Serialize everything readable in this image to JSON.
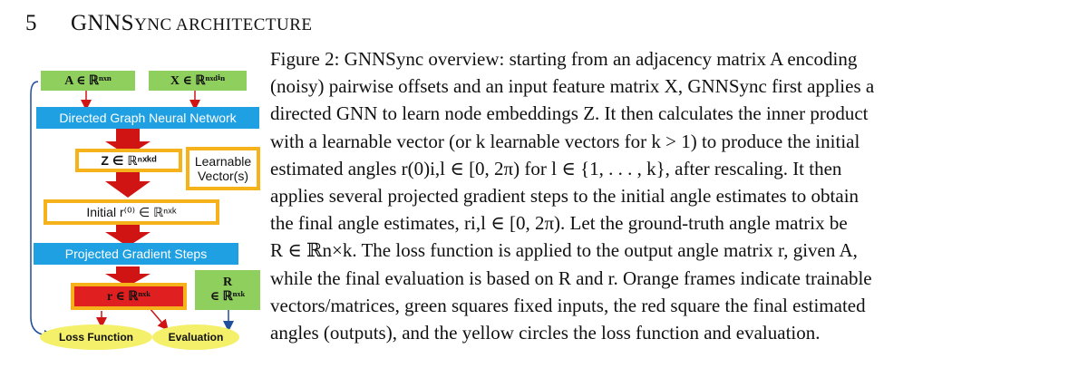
{
  "section": {
    "number": "5",
    "title_first": "GNNS",
    "title_small": "YNC ARCHITECTURE"
  },
  "diagram": {
    "input_adjacency": "A ∈ ℝⁿˣⁿ",
    "input_features": "X ∈ ℝⁿˣᵈⁱⁿ",
    "gnn_label": "Directed Graph Neural Network",
    "embedding": "Z ∈ ℝⁿˣᵏᵈ",
    "learnable_line1": "Learnable",
    "learnable_line2": "Vector(s)",
    "initial_angles": "Initial r⁽⁰⁾ ∈ ℝⁿˣᵏ",
    "pgd_label": "Projected Gradient Steps",
    "output": "r ∈ ℝⁿˣᵏ",
    "ground_truth_line1": "R",
    "ground_truth_line2": "∈ ℝⁿˣᵏ",
    "loss_label": "Loss Function",
    "eval_label": "Evaluation",
    "colors": {
      "green": "#8fcf5e",
      "blue": "#1ea0e2",
      "orange": "#f6b21a",
      "red": "#e02020",
      "yellow": "#f4f06a",
      "arrow_red": "#d01414",
      "arrow_blue": "#1f4e9c"
    }
  },
  "caption": {
    "lines": [
      "Figure 2: GNNSync overview: starting from an adjacency matrix A encoding",
      "(noisy) pairwise offsets and an input feature matrix X, GNNSync first applies a",
      "directed GNN to learn node embeddings Z. It then calculates the inner product",
      "with a learnable vector (or k learnable vectors for k > 1) to produce the initial",
      "estimated angles r(0)i,l ∈ [0, 2π) for l ∈ {1, . . . , k}, after rescaling. It then",
      "applies several projected gradient steps to the initial angle estimates to obtain",
      "the final angle estimates, ri,l ∈ [0, 2π). Let the ground-truth angle matrix be",
      "R ∈ ℝn×k. The loss function is applied to the output angle matrix r, given A,",
      "while the final evaluation is based on R and r. Orange frames indicate trainable",
      "vectors/matrices, green squares fixed inputs, the red square the final estimated",
      "angles (outputs), and the yellow circles the loss function and evaluation."
    ]
  }
}
